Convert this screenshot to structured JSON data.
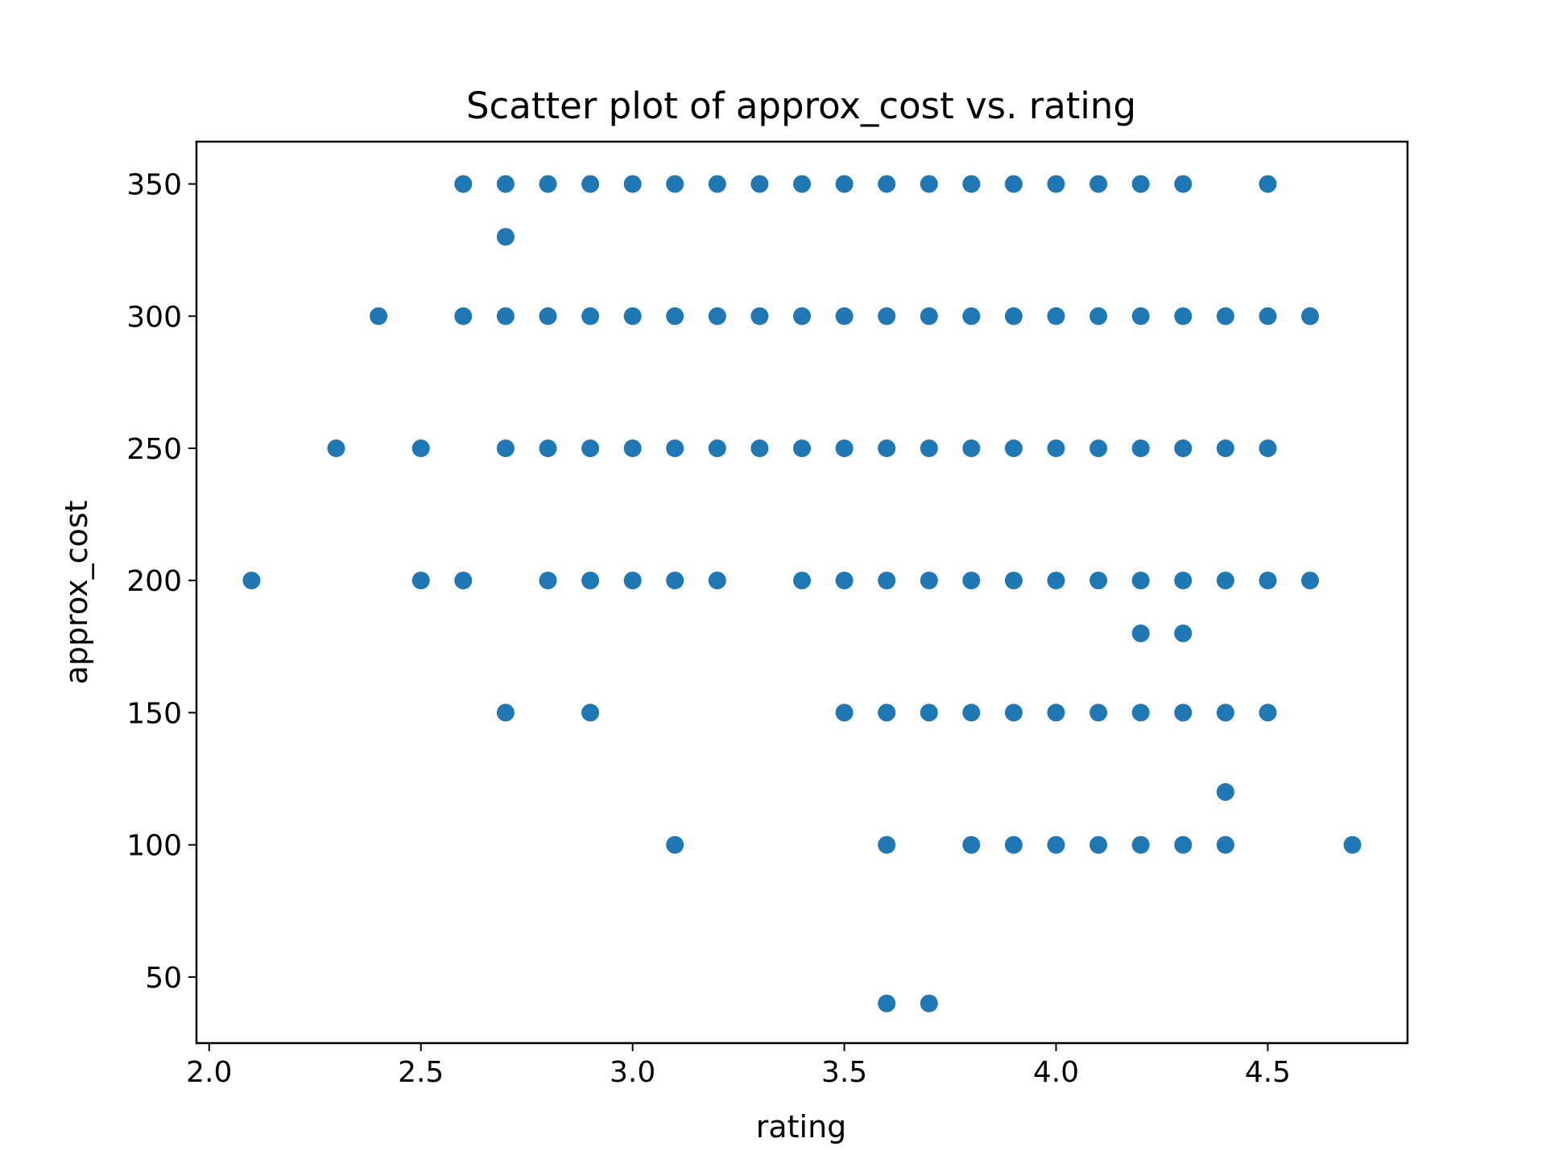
{
  "chart_data": {
    "type": "scatter",
    "title": "Scatter plot of approx_cost vs. rating",
    "xlabel": "rating",
    "ylabel": "approx_cost",
    "xlim": [
      1.97,
      4.83
    ],
    "ylim": [
      25,
      366
    ],
    "xticks": [
      2.0,
      2.5,
      3.0,
      3.5,
      4.0,
      4.5
    ],
    "xtick_labels": [
      "2.0",
      "2.5",
      "3.0",
      "3.5",
      "4.0",
      "4.5"
    ],
    "yticks": [
      50,
      100,
      150,
      200,
      250,
      300,
      350
    ],
    "ytick_labels": [
      "50",
      "100",
      "150",
      "200",
      "250",
      "300",
      "350"
    ],
    "grid": false,
    "legend": "none",
    "marker_color": "#1f77b4",
    "series": [
      {
        "x": [
          2.6,
          2.7,
          2.8,
          2.9,
          3.0,
          3.1,
          3.2,
          3.3,
          3.4,
          3.5,
          3.6,
          3.7,
          3.8,
          3.9,
          4.0,
          4.1,
          4.2,
          4.3,
          4.5,
          2.7,
          2.4,
          2.6,
          2.7,
          2.8,
          2.9,
          3.0,
          3.1,
          3.2,
          3.3,
          3.4,
          3.5,
          3.6,
          3.7,
          3.8,
          3.9,
          4.0,
          4.1,
          4.2,
          4.3,
          4.4,
          4.5,
          4.6,
          2.3,
          2.5,
          2.7,
          2.8,
          2.9,
          3.0,
          3.1,
          3.2,
          3.3,
          3.4,
          3.5,
          3.6,
          3.7,
          3.8,
          3.9,
          4.0,
          4.1,
          4.2,
          4.3,
          4.4,
          4.5,
          2.1,
          2.5,
          2.6,
          2.8,
          2.9,
          3.0,
          3.1,
          3.2,
          3.4,
          3.5,
          3.6,
          3.7,
          3.8,
          3.9,
          4.0,
          4.1,
          4.2,
          4.3,
          4.4,
          4.5,
          4.6,
          4.2,
          4.3,
          2.7,
          2.9,
          3.5,
          3.6,
          3.7,
          3.8,
          3.9,
          4.0,
          4.1,
          4.2,
          4.3,
          4.4,
          4.5,
          4.4,
          3.1,
          3.6,
          3.8,
          3.9,
          4.0,
          4.1,
          4.2,
          4.3,
          4.4,
          4.7,
          3.6,
          3.7
        ],
        "y": [
          350,
          350,
          350,
          350,
          350,
          350,
          350,
          350,
          350,
          350,
          350,
          350,
          350,
          350,
          350,
          350,
          350,
          350,
          350,
          330,
          300,
          300,
          300,
          300,
          300,
          300,
          300,
          300,
          300,
          300,
          300,
          300,
          300,
          300,
          300,
          300,
          300,
          300,
          300,
          300,
          300,
          300,
          250,
          250,
          250,
          250,
          250,
          250,
          250,
          250,
          250,
          250,
          250,
          250,
          250,
          250,
          250,
          250,
          250,
          250,
          250,
          250,
          250,
          200,
          200,
          200,
          200,
          200,
          200,
          200,
          200,
          200,
          200,
          200,
          200,
          200,
          200,
          200,
          200,
          200,
          200,
          200,
          200,
          200,
          180,
          180,
          150,
          150,
          150,
          150,
          150,
          150,
          150,
          150,
          150,
          150,
          150,
          150,
          150,
          120,
          100,
          100,
          100,
          100,
          100,
          100,
          100,
          100,
          100,
          100,
          40,
          40
        ]
      }
    ]
  }
}
